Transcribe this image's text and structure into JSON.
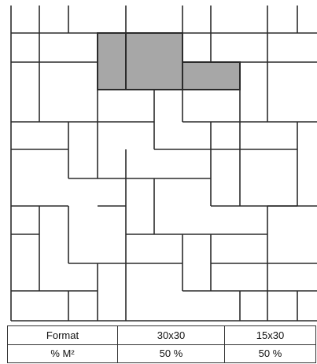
{
  "pattern": {
    "tile_fill": "#ffffff",
    "highlight_fill": "#a7a7a7",
    "line_color": "#2b2b2b",
    "highlighted_tiles": [
      {
        "format": "15x30",
        "orientation": "vertical"
      },
      {
        "format": "30x30"
      },
      {
        "format": "15x30",
        "orientation": "horizontal"
      }
    ]
  },
  "table": {
    "rows": [
      {
        "label": "Format",
        "values": [
          "30x30",
          "15x30"
        ]
      },
      {
        "label": "% M²",
        "values": [
          "50 %",
          "50 %"
        ]
      }
    ]
  }
}
